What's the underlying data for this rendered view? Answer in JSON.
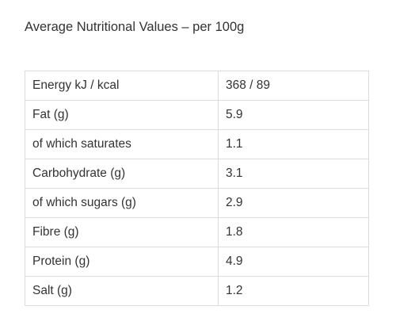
{
  "heading": "Average Nutritional Values – per 100g",
  "table": {
    "rows": [
      {
        "label": "Energy kJ / kcal",
        "value": "368 / 89"
      },
      {
        "label": "Fat (g)",
        "value": "5.9"
      },
      {
        "label": "of which saturates",
        "value": "1.1"
      },
      {
        "label": "Carbohydrate (g)",
        "value": "3.1"
      },
      {
        "label": "of which sugars (g)",
        "value": "2.9"
      },
      {
        "label": "Fibre (g)",
        "value": "1.8"
      },
      {
        "label": "Protein (g)",
        "value": "4.9"
      },
      {
        "label": "Salt (g)",
        "value": "1.2"
      }
    ]
  }
}
